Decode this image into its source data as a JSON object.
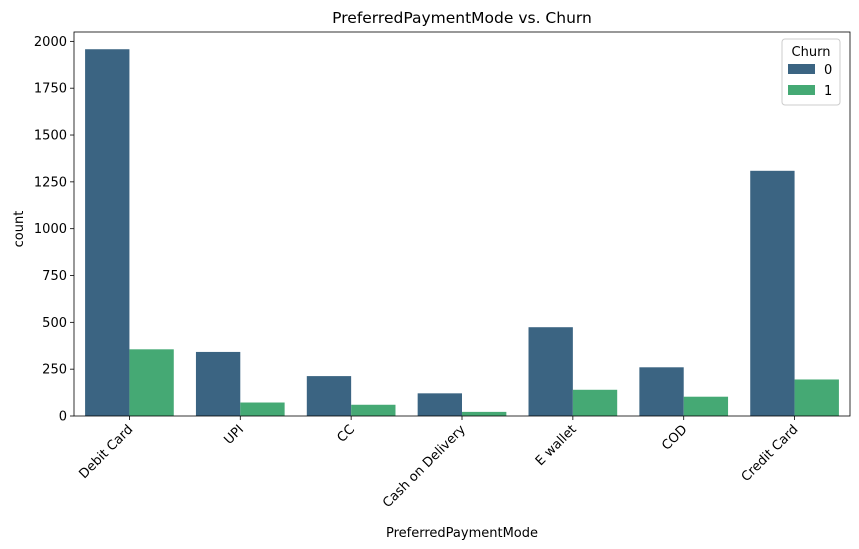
{
  "chart_data": {
    "type": "bar",
    "title": "PreferredPaymentMode vs. Churn",
    "xlabel": "PreferredPaymentMode",
    "ylabel": "count",
    "categories": [
      "Debit Card",
      "UPI",
      "CC",
      "Cash on Delivery",
      "E wallet",
      "COD",
      "Credit Card"
    ],
    "series": [
      {
        "name": "0",
        "color": "#3b6482",
        "values": [
          1958,
          342,
          213,
          121,
          474,
          260,
          1309
        ]
      },
      {
        "name": "1",
        "color": "#45a974",
        "values": [
          356,
          72,
          60,
          22,
          140,
          103,
          195
        ]
      }
    ],
    "ylim": [
      0,
      2050
    ],
    "yticks": [
      0,
      250,
      500,
      750,
      1000,
      1250,
      1500,
      1750,
      2000
    ],
    "legend": {
      "title": "Churn",
      "position": "top-right"
    },
    "grid": false
  }
}
